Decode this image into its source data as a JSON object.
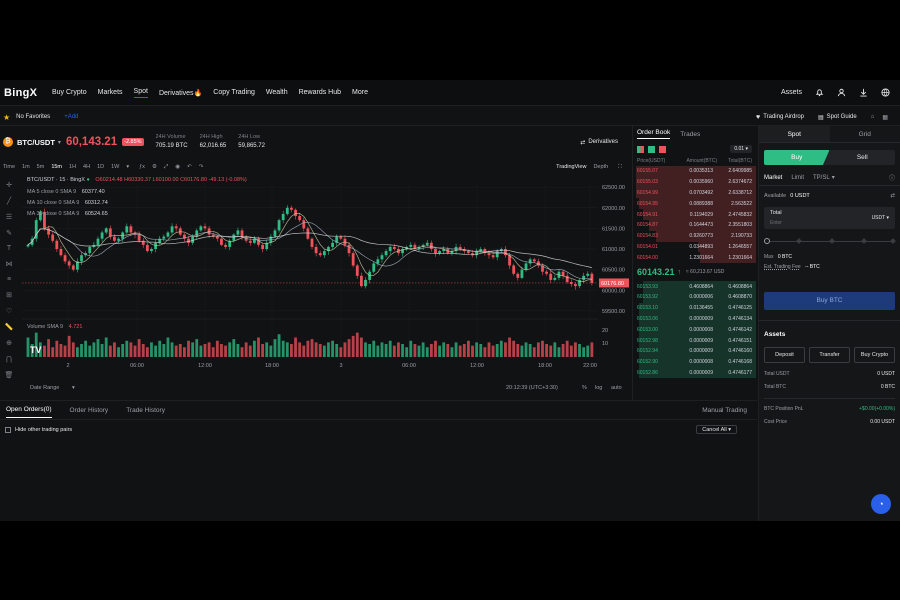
{
  "nav": {
    "logo": "BingX",
    "items": [
      "Buy Crypto",
      "Markets",
      "Spot",
      "Derivatives🔥",
      "Copy Trading",
      "Wealth",
      "Rewards Hub",
      "More"
    ],
    "assets": "Assets"
  },
  "subbar": {
    "favorites": "No Favorites",
    "add": "+Add",
    "airdrop": "Trading Airdrop",
    "guide": "Spot Guide"
  },
  "ticker": {
    "pair": "BTC/USDT",
    "price": "60,143.21",
    "change": "-2.85%",
    "vol_label": "24H Volume",
    "vol": "705.19 BTC",
    "high_label": "24H High",
    "high": "62,016.65",
    "low_label": "24H Low",
    "low": "59,865.72",
    "derivatives": "Derivatives"
  },
  "timeframes": [
    "Time",
    "1m",
    "5m",
    "15m",
    "1H",
    "4H",
    "1D",
    "1W"
  ],
  "chart_views": [
    "TradingView",
    "Depth"
  ],
  "legend": {
    "title": "BTC/USDT · 15 · BingX",
    "ohlc": "O60214.48 H60330.37 L60100.00 C60176.80 -49.13 (-0.08%)",
    "ma5": "MA 5 close 0 SMA 9",
    "ma5v": "60377.40",
    "ma10": "MA 10 close 0 SMA 9",
    "ma10v": "60312.74",
    "ma30": "MA 30 close 0 SMA 9",
    "ma30v": "60524.65",
    "vol": "Volume SMA 9",
    "volv": "4.721"
  },
  "chart_data": {
    "type": "candlestick",
    "yticks": [
      "62500.00",
      "62000.00",
      "61500.00",
      "61000.00",
      "60500.00",
      "60000.00",
      "59500.00"
    ],
    "xticks": [
      "2",
      "06:00",
      "12:00",
      "18:00",
      "3",
      "06:00",
      "12:00",
      "18:00",
      "22:00"
    ],
    "last_price": "60176.80",
    "vol_ticks": [
      "20",
      "10"
    ],
    "closes": [
      61100,
      61250,
      61700,
      61900,
      61500,
      61350,
      61200,
      61000,
      60850,
      60700,
      60600,
      60500,
      60700,
      60850,
      60900,
      61050,
      61100,
      61250,
      61400,
      61500,
      61300,
      61200,
      61250,
      61400,
      61550,
      61400,
      61350,
      61200,
      61100,
      60950,
      61000,
      61150,
      61250,
      61300,
      61400,
      61550,
      61500,
      61350,
      61250,
      61150,
      61300,
      61450,
      61550,
      61500,
      61350,
      61300,
      61250,
      61100,
      61050,
      61200,
      61350,
      61450,
      61300,
      61200,
      61150,
      61250,
      61100,
      61000,
      61150,
      61300,
      61450,
      61700,
      61850,
      62000,
      61950,
      61800,
      61700,
      61500,
      61250,
      61050,
      60900,
      60850,
      60950,
      61050,
      61150,
      61300,
      61250,
      61100,
      60900,
      60600,
      60350,
      60100,
      60250,
      60450,
      60650,
      60750,
      60850,
      60950,
      61050,
      61000,
      60900,
      61000,
      61050,
      61100,
      61000,
      61050,
      61100,
      61150,
      61000,
      60900,
      60950,
      61000,
      60900,
      60950,
      61050,
      61000,
      60950,
      60900,
      60850,
      60950,
      61000,
      60900,
      60850,
      60800,
      60950,
      61000,
      60850,
      60600,
      60400,
      60300,
      60500,
      60650,
      60750,
      60700,
      60600,
      60450,
      60400,
      60250,
      60300,
      60450,
      60350,
      60200,
      60150,
      60100,
      60250,
      60350,
      60400,
      60176
    ],
    "volumes": [
      12,
      8,
      15,
      9,
      7,
      11,
      6,
      10,
      8,
      7,
      13,
      9,
      6,
      8,
      10,
      7,
      9,
      11,
      8,
      12,
      7,
      9,
      6,
      8,
      10,
      9,
      7,
      11,
      8,
      6,
      9,
      7,
      10,
      8,
      12,
      9,
      7,
      8,
      6,
      10,
      9,
      11,
      7,
      8,
      9,
      6,
      10,
      8,
      7,
      9,
      11,
      8,
      6,
      9,
      7,
      10,
      12,
      8,
      9,
      7,
      11,
      14,
      10,
      9,
      8,
      12,
      9,
      7,
      10,
      11,
      9,
      8,
      7,
      9,
      10,
      8,
      6,
      9,
      11,
      13,
      15,
      12,
      9,
      8,
      10,
      7,
      9,
      8,
      10,
      7,
      9,
      8,
      6,
      10,
      8,
      7,
      9,
      6,
      8,
      10,
      7,
      9,
      8,
      6,
      9,
      7,
      8,
      10,
      7,
      9,
      8,
      6,
      9,
      7,
      8,
      10,
      9,
      12,
      10,
      8,
      7,
      9,
      8,
      6,
      9,
      10,
      8,
      7,
      9,
      6,
      8,
      10,
      7,
      9,
      8,
      6,
      7,
      9
    ]
  },
  "axis": {
    "date_range": "Date Range",
    "time": "20:12:39 (UTC+3:30)",
    "pct": "%",
    "log": "log",
    "auto": "auto"
  },
  "orderbook": {
    "tab1": "Order Book",
    "tab2": "Trades",
    "precision": "0.01",
    "h_price": "Price(USDT)",
    "h_amount": "Amount(BTC)",
    "h_total": "Total(BTC)",
    "asks": [
      [
        "60155.07",
        "0.0035313",
        "2.6409985"
      ],
      [
        "60155.03",
        "0.0035960",
        "2.6374672"
      ],
      [
        "60154.99",
        "0.0703492",
        "2.6338712"
      ],
      [
        "60154.95",
        "0.0889388",
        "2.563522"
      ],
      [
        "60154.91",
        "0.1194029",
        "2.4745832"
      ],
      [
        "60154.87",
        "0.1644473",
        "2.3551803"
      ],
      [
        "60154.83",
        "0.9260773",
        "2.190733"
      ],
      [
        "60154.01",
        "0.0344893",
        "1.2646557"
      ],
      [
        "60154.00",
        "1.2301664",
        "1.2301664"
      ]
    ],
    "mid": "60143.21",
    "mid_arrow": "↑",
    "mid_sub": "≈ 60,213.67 USD",
    "bids": [
      [
        "60153.93",
        "0.4608864",
        "0.4608864"
      ],
      [
        "60153.92",
        "0.0000006",
        "0.4608870"
      ],
      [
        "60153.10",
        "0.0136455",
        "0.4746125"
      ],
      [
        "60153.06",
        "0.0000009",
        "0.4746134"
      ],
      [
        "60153.00",
        "0.0000008",
        "0.4746142"
      ],
      [
        "60152.98",
        "0.0000009",
        "0.4746151"
      ],
      [
        "60152.94",
        "0.0000009",
        "0.4746160"
      ],
      [
        "60152.90",
        "0.0000008",
        "0.4746168"
      ],
      [
        "60152.86",
        "0.0000009",
        "0.4746177"
      ]
    ]
  },
  "trade": {
    "tab_spot": "Spot",
    "tab_grid": "Grid",
    "buy": "Buy",
    "sell": "Sell",
    "type_market": "Market",
    "type_limit": "Limit",
    "type_tpsl": "TP/SL",
    "available_label": "Available",
    "available": "0 USDT",
    "total_label": "Total",
    "total_placeholder": "Enter",
    "unit": "USDT",
    "max_label": "Max",
    "max": "0 BTC",
    "fee_label": "Est. Trading Fee",
    "fee": "-- BTC",
    "submit": "Buy BTC",
    "assets_title": "Assets",
    "deposit": "Deposit",
    "transfer": "Transfer",
    "buycrypto": "Buy Crypto",
    "total_usdt_label": "Total USDT",
    "total_usdt": "0 USDT",
    "total_btc_label": "Total BTC",
    "total_btc": "0 BTC",
    "pnl_label": "BTC Position PnL",
    "pnl": "+$0.00(+0.00%)",
    "cost_label": "Cost Price",
    "cost": "0.00 USDT"
  },
  "orders": {
    "tab_open": "Open Orders(0)",
    "tab_history": "Order History",
    "tab_trades": "Trade History",
    "manual": "Manual Trading",
    "hide_other": "Hide other trading pairs",
    "cancel_all": "Cancel All"
  },
  "colors": {
    "up": "#2ebd85",
    "down": "#f0525c",
    "accent": "#2a5fe9",
    "buy": "#2ebd85"
  }
}
